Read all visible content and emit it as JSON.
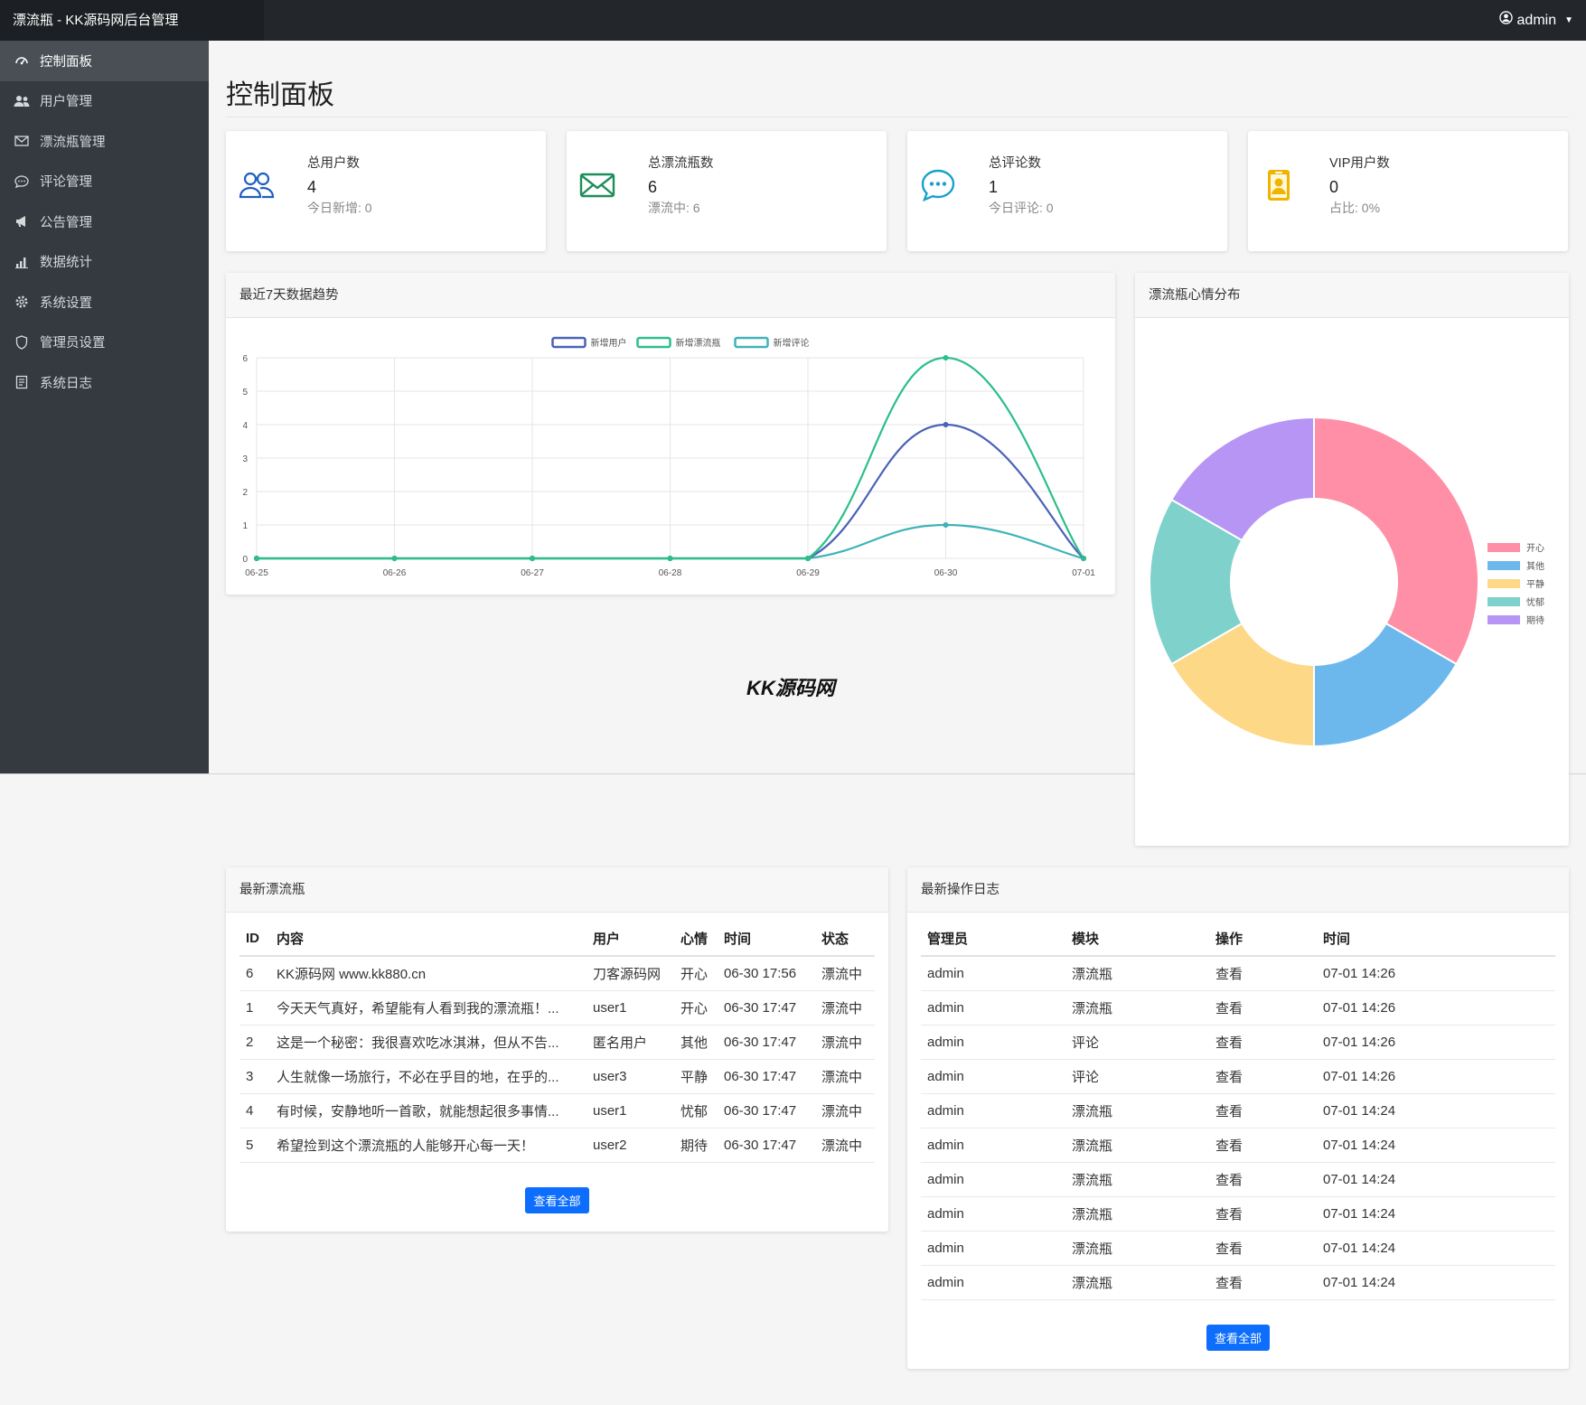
{
  "header": {
    "brand": "漂流瓶 - KK源码网后台管理",
    "user": "admin"
  },
  "sidebar": {
    "items": [
      {
        "label": "控制面板",
        "icon": "dashboard-icon",
        "active": true
      },
      {
        "label": "用户管理",
        "icon": "users-icon"
      },
      {
        "label": "漂流瓶管理",
        "icon": "envelope-icon"
      },
      {
        "label": "评论管理",
        "icon": "comment-icon"
      },
      {
        "label": "公告管理",
        "icon": "megaphone-icon"
      },
      {
        "label": "数据统计",
        "icon": "bar-chart-icon"
      },
      {
        "label": "系统设置",
        "icon": "gear-icon"
      },
      {
        "label": "管理员设置",
        "icon": "shield-icon"
      },
      {
        "label": "系统日志",
        "icon": "log-icon"
      }
    ]
  },
  "page": {
    "title": "控制面板",
    "watermark": "KK源码网"
  },
  "stats": [
    {
      "label": "总用户数",
      "value": "4",
      "sub": "今日新增: 0",
      "icon": "users-icon",
      "color": "#1f5fbf"
    },
    {
      "label": "总漂流瓶数",
      "value": "6",
      "sub": "漂流中: 6",
      "icon": "envelope-icon",
      "color": "#1e8e5a"
    },
    {
      "label": "总评论数",
      "value": "1",
      "sub": "今日评论: 0",
      "icon": "chat-dots-icon",
      "color": "#17a2c8"
    },
    {
      "label": "VIP用户数",
      "value": "0",
      "sub": "占比: 0%",
      "icon": "badge-icon",
      "color": "#f0b400"
    }
  ],
  "trend_panel": {
    "title": "最近7天数据趋势"
  },
  "mood_panel": {
    "title": "漂流瓶心情分布"
  },
  "chart_data": [
    {
      "type": "line",
      "title": "最近7天数据趋势",
      "x": [
        "06-25",
        "06-26",
        "06-27",
        "06-28",
        "06-29",
        "06-30",
        "07-01"
      ],
      "ylim": [
        0,
        6
      ],
      "yticks": [
        0,
        1,
        2,
        3,
        4,
        5,
        6
      ],
      "grid": true,
      "legend": "top-center",
      "series": [
        {
          "name": "新增用户",
          "values": [
            0,
            0,
            0,
            0,
            0,
            4,
            0
          ],
          "color": "#4a62b8"
        },
        {
          "name": "新增漂流瓶",
          "values": [
            0,
            0,
            0,
            0,
            0,
            6,
            0
          ],
          "color": "#2bbf8a"
        },
        {
          "name": "新增评论",
          "values": [
            0,
            0,
            0,
            0,
            0,
            1,
            0
          ],
          "color": "#3fb3b8"
        }
      ]
    },
    {
      "type": "pie",
      "title": "漂流瓶心情分布",
      "legend": "right",
      "categories": [
        "开心",
        "其他",
        "平静",
        "忧郁",
        "期待"
      ],
      "values": [
        2,
        1,
        1,
        1,
        1
      ],
      "colors": [
        "#ff8fa6",
        "#6cb8ec",
        "#fdd887",
        "#7fd1cc",
        "#b795f5"
      ]
    }
  ],
  "bottles": {
    "title": "最新漂流瓶",
    "columns": [
      "ID",
      "内容",
      "用户",
      "心情",
      "时间",
      "状态"
    ],
    "rows": [
      [
        "6",
        "KK源码网 www.kk880.cn",
        "刀客源码网",
        "开心",
        "06-30 17:56",
        "漂流中"
      ],
      [
        "1",
        "今天天气真好，希望能有人看到我的漂流瓶！...",
        "user1",
        "开心",
        "06-30 17:47",
        "漂流中"
      ],
      [
        "2",
        "这是一个秘密：我很喜欢吃冰淇淋，但从不告...",
        "匿名用户",
        "其他",
        "06-30 17:47",
        "漂流中"
      ],
      [
        "3",
        "人生就像一场旅行，不必在乎目的地，在乎的...",
        "user3",
        "平静",
        "06-30 17:47",
        "漂流中"
      ],
      [
        "4",
        "有时候，安静地听一首歌，就能想起很多事情...",
        "user1",
        "忧郁",
        "06-30 17:47",
        "漂流中"
      ],
      [
        "5",
        "希望捡到这个漂流瓶的人能够开心每一天！",
        "user2",
        "期待",
        "06-30 17:47",
        "漂流中"
      ]
    ],
    "button": "查看全部"
  },
  "logs": {
    "title": "最新操作日志",
    "columns": [
      "管理员",
      "模块",
      "操作",
      "时间"
    ],
    "rows": [
      [
        "admin",
        "漂流瓶",
        "查看",
        "07-01 14:26"
      ],
      [
        "admin",
        "漂流瓶",
        "查看",
        "07-01 14:26"
      ],
      [
        "admin",
        "评论",
        "查看",
        "07-01 14:26"
      ],
      [
        "admin",
        "评论",
        "查看",
        "07-01 14:26"
      ],
      [
        "admin",
        "漂流瓶",
        "查看",
        "07-01 14:24"
      ],
      [
        "admin",
        "漂流瓶",
        "查看",
        "07-01 14:24"
      ],
      [
        "admin",
        "漂流瓶",
        "查看",
        "07-01 14:24"
      ],
      [
        "admin",
        "漂流瓶",
        "查看",
        "07-01 14:24"
      ],
      [
        "admin",
        "漂流瓶",
        "查看",
        "07-01 14:24"
      ],
      [
        "admin",
        "漂流瓶",
        "查看",
        "07-01 14:24"
      ]
    ],
    "button": "查看全部"
  }
}
